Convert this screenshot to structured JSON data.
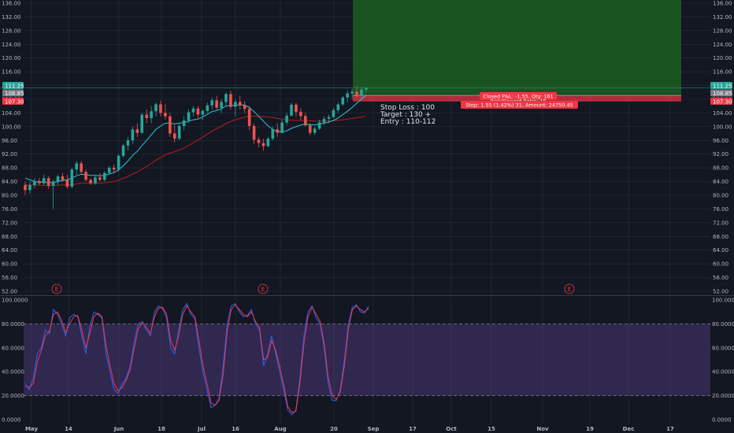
{
  "chart_data": [
    {
      "type": "candlestick",
      "yticks": [
        "136.00",
        "132.00",
        "128.00",
        "124.00",
        "120.00",
        "116.00",
        "112.00",
        "108.00",
        "104.00",
        "100.00",
        "96.00",
        "92.00",
        "88.00",
        "84.00",
        "80.00",
        "76.00",
        "72.00",
        "68.00",
        "64.00",
        "60.00",
        "56.00",
        "52.00"
      ],
      "ylim": [
        50.5,
        137
      ],
      "x_labels": [
        "May",
        "14",
        "Jun",
        "18",
        "Jul",
        "16",
        "Aug",
        "20",
        "Sep",
        "17",
        "Oct",
        "15",
        "Nov",
        "19",
        "Dec",
        "17"
      ],
      "price_tags": [
        {
          "label": "111.25",
          "value": 111.25,
          "color": "#26a69a"
        },
        {
          "label": "108.85",
          "value": 108.85,
          "color": "#787b86"
        },
        {
          "label": "107.30",
          "value": 107.3,
          "color": "#f23645"
        }
      ],
      "candles": [
        [
          83,
          84,
          80,
          81.5
        ],
        [
          81.5,
          84,
          80.5,
          83
        ],
        [
          83,
          85,
          82,
          84.2
        ],
        [
          84.2,
          85,
          83,
          83.5
        ],
        [
          83.5,
          86,
          83,
          85
        ],
        [
          85,
          85.5,
          82,
          82.8
        ],
        [
          82.8,
          84.5,
          76,
          84
        ],
        [
          84,
          86,
          83,
          85.5
        ],
        [
          85.5,
          86.5,
          84,
          84.5
        ],
        [
          84.5,
          86,
          82,
          82.5
        ],
        [
          82.5,
          88,
          82,
          87.5
        ],
        [
          87.5,
          90,
          86,
          89.3
        ],
        [
          89.3,
          90,
          86,
          86.8
        ],
        [
          86.8,
          87.5,
          84,
          84.5
        ],
        [
          84.5,
          85,
          83,
          83.5
        ],
        [
          83.5,
          86,
          83,
          85.2
        ],
        [
          85.2,
          86.5,
          84,
          84.5
        ],
        [
          84.5,
          87,
          84,
          86.5
        ],
        [
          86.5,
          88.5,
          86,
          88
        ],
        [
          88,
          89,
          86.5,
          87.5
        ],
        [
          87.5,
          92,
          87,
          91.5
        ],
        [
          91.5,
          95,
          91,
          94.5
        ],
        [
          94.5,
          97,
          93,
          96
        ],
        [
          96,
          100,
          95,
          99.2
        ],
        [
          99.2,
          101,
          97,
          98.2
        ],
        [
          98.2,
          104,
          98,
          103.5
        ],
        [
          103.5,
          105,
          101,
          102.5
        ],
        [
          102.5,
          106,
          101,
          104.5
        ],
        [
          104.5,
          107,
          103,
          106.5
        ],
        [
          106.5,
          107.5,
          103,
          104
        ],
        [
          104,
          106.5,
          102,
          103
        ],
        [
          103,
          104,
          97,
          98
        ],
        [
          98,
          100.5,
          95.5,
          96.5
        ],
        [
          96.5,
          101,
          96,
          100.2
        ],
        [
          100.2,
          103,
          99,
          101.8
        ],
        [
          101.8,
          105,
          101,
          104.2
        ],
        [
          104.2,
          106,
          103,
          105.3
        ],
        [
          105.3,
          106,
          102.5,
          103.5
        ],
        [
          103.5,
          105,
          102,
          104.6
        ],
        [
          104.6,
          107,
          104,
          106.2
        ],
        [
          106.2,
          108.5,
          105,
          107.7
        ],
        [
          107.7,
          109,
          105,
          105.5
        ],
        [
          105.5,
          108,
          104,
          107.2
        ],
        [
          107.2,
          110,
          106,
          109.5
        ],
        [
          109.5,
          110.5,
          105,
          105.8
        ],
        [
          105.8,
          108,
          103,
          107.2
        ],
        [
          107.2,
          109,
          105,
          106.2
        ],
        [
          106.2,
          107.5,
          104,
          105.2
        ],
        [
          105.2,
          106,
          99,
          100.2
        ],
        [
          100.2,
          101,
          95,
          96.2
        ],
        [
          96.2,
          97,
          94,
          95.2
        ],
        [
          95.2,
          96.5,
          93,
          94.3
        ],
        [
          94.3,
          97,
          94,
          96.5
        ],
        [
          96.5,
          100,
          96,
          99.2
        ],
        [
          99.2,
          101,
          97,
          98.2
        ],
        [
          98.2,
          102,
          98,
          101.2
        ],
        [
          101.2,
          104,
          100.5,
          103.2
        ],
        [
          103.2,
          107,
          103,
          106.4
        ],
        [
          106.4,
          107,
          103,
          104.3
        ],
        [
          104.3,
          105.5,
          102,
          103.1
        ],
        [
          103.1,
          104,
          100,
          100.4
        ],
        [
          100.4,
          101,
          97.5,
          98.2
        ],
        [
          98.2,
          100,
          97.5,
          99.4
        ],
        [
          99.4,
          102,
          99,
          101.2
        ],
        [
          101.2,
          103,
          100.5,
          102.3
        ],
        [
          102.3,
          103.5,
          101,
          102.8
        ],
        [
          102.8,
          105.5,
          102.5,
          104.8
        ],
        [
          104.8,
          107,
          104,
          106.5
        ],
        [
          106.5,
          109,
          106,
          108.5
        ],
        [
          108.5,
          110.5,
          107,
          109.7
        ],
        [
          109.7,
          111,
          108,
          110.2
        ],
        [
          110.2,
          112,
          108.5,
          109.2
        ],
        [
          109.2,
          111.5,
          108,
          110.8
        ],
        [
          110.8,
          111.6,
          110,
          111.25
        ]
      ],
      "sma_fast": [
        85,
        84.5,
        84,
        83.8,
        83.8,
        83.7,
        83.7,
        84,
        84.3,
        84.5,
        85,
        85.7,
        86.1,
        86,
        85.8,
        85.8,
        85.7,
        85.8,
        86.2,
        86.6,
        87.4,
        88.6,
        90,
        91.6,
        92.8,
        94.5,
        96,
        97.6,
        99.2,
        100.2,
        101,
        101,
        100.8,
        101,
        101.2,
        101.6,
        102,
        102.2,
        102.8,
        103.6,
        104.4,
        104.7,
        105.2,
        106,
        106.1,
        106.2,
        106.3,
        106.3,
        105.6,
        104.4,
        103,
        101.6,
        100.2,
        99.2,
        98.6,
        98.4,
        98.8,
        99.5,
        100,
        100.5,
        100.7,
        100.6,
        100.5,
        100.8,
        101,
        101.3,
        101.8,
        102.5,
        103.5,
        104.5,
        105.6,
        106.8,
        108,
        109.2
      ],
      "sma_slow": [
        83,
        83,
        83,
        82.9,
        82.9,
        82.8,
        82.8,
        82.9,
        83,
        83,
        83.1,
        83.3,
        83.5,
        83.5,
        83.5,
        83.5,
        83.5,
        83.6,
        83.8,
        84,
        84.4,
        84.9,
        85.5,
        86.2,
        86.8,
        87.6,
        88.4,
        89.3,
        90.2,
        91,
        91.8,
        92.3,
        92.7,
        93.2,
        93.8,
        94.5,
        95.3,
        96.1,
        96.9,
        97.8,
        98.7,
        99.4,
        100.1,
        100.9,
        101.5,
        102,
        102.4,
        102.8,
        103,
        103.1,
        103,
        102.9,
        102.8,
        102.6,
        102.4,
        102.2,
        102,
        101.9,
        101.8,
        101.8,
        101.8,
        101.7,
        101.6,
        101.6,
        101.6,
        101.6,
        101.7,
        101.8,
        102,
        102.2,
        102.4,
        102.6,
        102.8,
        103.1
      ]
    },
    {
      "type": "line",
      "yticks": [
        "100.0000",
        "80.0000",
        "60.0000",
        "40.0000",
        "20.0000",
        "0.0000"
      ],
      "ylim": [
        0,
        100
      ],
      "bands": [
        80,
        20
      ],
      "series": [
        {
          "color": "#2962ff",
          "values": [
            30,
            25,
            35,
            55,
            60,
            75,
            72,
            92,
            88,
            80,
            70,
            85,
            88,
            86,
            70,
            55,
            78,
            90,
            88,
            85,
            55,
            40,
            25,
            22,
            30,
            35,
            45,
            65,
            80,
            82,
            75,
            70,
            90,
            95,
            93,
            85,
            60,
            55,
            75,
            92,
            97,
            88,
            84,
            60,
            40,
            25,
            10,
            12,
            18,
            45,
            80,
            95,
            97,
            90,
            86,
            87,
            92,
            80,
            75,
            45,
            55,
            70,
            55,
            40,
            25,
            8,
            4,
            8,
            35,
            70,
            90,
            95,
            85,
            80,
            60,
            30,
            16,
            16,
            25,
            50,
            80,
            94,
            96,
            90,
            89,
            95
          ]
        },
        {
          "color": "#f23645",
          "values": [
            28,
            27,
            30,
            48,
            58,
            70,
            74,
            88,
            90,
            83,
            73,
            80,
            86,
            87,
            75,
            60,
            72,
            86,
            89,
            86,
            62,
            45,
            30,
            24,
            27,
            33,
            42,
            60,
            76,
            81,
            77,
            72,
            86,
            93,
            94,
            88,
            66,
            58,
            70,
            88,
            95,
            90,
            86,
            66,
            45,
            30,
            14,
            12,
            16,
            38,
            74,
            92,
            96,
            92,
            88,
            86,
            90,
            82,
            77,
            50,
            52,
            66,
            58,
            44,
            29,
            11,
            6,
            7,
            30,
            64,
            86,
            94,
            88,
            82,
            64,
            35,
            20,
            17,
            23,
            45,
            76,
            92,
            95,
            92,
            90,
            93
          ]
        }
      ]
    }
  ],
  "position": {
    "entry": 109.1,
    "stop": 107.55,
    "target": 137,
    "closed_label": "Closed P&L: -1.55, Qty: 161",
    "ratio_label": "Risk/Reward Ratio: 18",
    "stop_label": "Stop: 1.55 (1.42%) 31, Amount: 24750.45"
  },
  "note": [
    "Stop Loss : 100",
    "Target : 130 +",
    "Entry : 110-112"
  ],
  "earnings_marker": "E",
  "colors": {
    "up": "#26a69a",
    "down": "#ef5350",
    "sma_fast": "#26c6da",
    "sma_slow": "#b71c1c",
    "bg": "#131722",
    "grid": "#2a2e39",
    "osc_band": "#7e57c2",
    "profit_zone": "#1b5e20",
    "loss_zone": "#f23645"
  }
}
